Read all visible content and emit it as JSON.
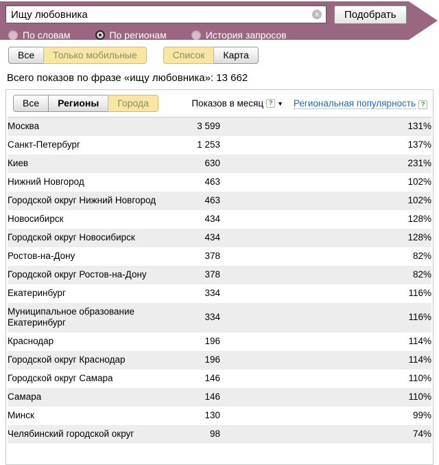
{
  "icons": {
    "clear": "✕",
    "help": "?",
    "sort_desc": "▼"
  },
  "colors": {
    "banner": "#9a6780",
    "selected_button_yellow": "#f8e7a4",
    "link_blue": "#1a6bbd",
    "row_alt_gray": "#ededed",
    "help_icon_green": "#3f9e2f"
  },
  "search": {
    "query": "Ищу любовника",
    "submit_label": "Подобрать",
    "modes": [
      {
        "label": "По словам",
        "selected": false
      },
      {
        "label": "По регионам",
        "selected": true
      },
      {
        "label": "История запросов",
        "selected": false
      }
    ]
  },
  "filters": {
    "device": [
      {
        "label": "Все",
        "selected": false
      },
      {
        "label": "Только мобильные",
        "selected": true
      }
    ],
    "view": [
      {
        "label": "Список",
        "selected": true
      },
      {
        "label": "Карта",
        "selected": false
      }
    ]
  },
  "summary": "Всего показов по фразе «ищу любовника»: 13 662",
  "table": {
    "tabs": [
      {
        "label": "Все",
        "selected": false
      },
      {
        "label": "Регионы",
        "selected": false
      },
      {
        "label": "Города",
        "selected": true
      }
    ],
    "columns": {
      "shows_label": "Показов в месяц",
      "popularity_label": "Региональная популярность"
    },
    "rows": [
      {
        "name": "Москва",
        "shows": "3 599",
        "popularity": "131%"
      },
      {
        "name": "Санкт-Петербург",
        "shows": "1 253",
        "popularity": "137%"
      },
      {
        "name": "Киев",
        "shows": "630",
        "popularity": "231%"
      },
      {
        "name": "Нижний Новгород",
        "shows": "463",
        "popularity": "102%"
      },
      {
        "name": "Городской округ Нижний Новгород",
        "shows": "463",
        "popularity": "102%"
      },
      {
        "name": "Новосибирск",
        "shows": "434",
        "popularity": "128%"
      },
      {
        "name": "Городской округ Новосибирск",
        "shows": "434",
        "popularity": "128%"
      },
      {
        "name": "Ростов-на-Дону",
        "shows": "378",
        "popularity": "82%"
      },
      {
        "name": "Городской округ Ростов-на-Дону",
        "shows": "378",
        "popularity": "82%"
      },
      {
        "name": "Екатеринбург",
        "shows": "334",
        "popularity": "116%"
      },
      {
        "name": "Муниципальное образование Екатеринбург",
        "shows": "334",
        "popularity": "116%"
      },
      {
        "name": "Краснодар",
        "shows": "196",
        "popularity": "114%"
      },
      {
        "name": "Городской округ Краснодар",
        "shows": "196",
        "popularity": "114%"
      },
      {
        "name": "Городской округ Самара",
        "shows": "146",
        "popularity": "110%"
      },
      {
        "name": "Самара",
        "shows": "146",
        "popularity": "110%"
      },
      {
        "name": "Минск",
        "shows": "130",
        "popularity": "99%"
      },
      {
        "name": "Челябинский городской округ",
        "shows": "98",
        "popularity": "74%"
      }
    ]
  }
}
